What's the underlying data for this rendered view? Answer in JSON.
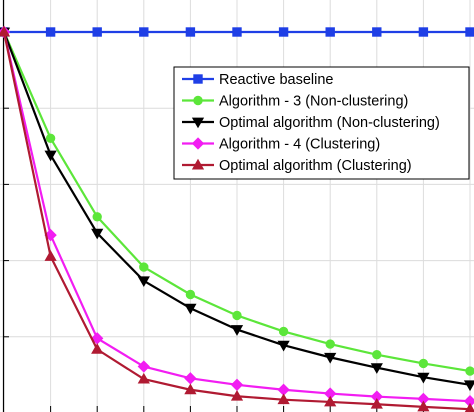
{
  "chart_data": {
    "type": "line",
    "x": [
      0,
      1,
      2,
      3,
      4,
      5,
      6,
      7,
      8,
      9,
      10
    ],
    "ylim": [
      0,
      1.1
    ],
    "xlim": [
      0,
      10
    ],
    "grid": true,
    "legend_position": "upper-right",
    "series": [
      {
        "name": "Reactive baseline",
        "color": "#1f3fe6",
        "marker": "square",
        "values": [
          1.0,
          1.0,
          1.0,
          1.0,
          1.0,
          1.0,
          1.0,
          1.0,
          1.0,
          1.0,
          1.0
        ]
      },
      {
        "name": "Algorithm - 3 (Non-clustering)",
        "color": "#5ce63a",
        "marker": "circle",
        "values": [
          1.0,
          0.721,
          0.515,
          0.383,
          0.311,
          0.256,
          0.214,
          0.181,
          0.153,
          0.13,
          0.11
        ]
      },
      {
        "name": "Optimal algorithm (Non-clustering)",
        "color": "#000000",
        "marker": "triangle-down",
        "values": [
          1.0,
          0.677,
          0.472,
          0.347,
          0.275,
          0.219,
          0.178,
          0.146,
          0.119,
          0.094,
          0.074
        ]
      },
      {
        "name": "Algorithm - 4 (Clustering)",
        "color": "#f21df2",
        "marker": "diamond",
        "values": [
          1.0,
          0.467,
          0.196,
          0.122,
          0.091,
          0.074,
          0.061,
          0.051,
          0.043,
          0.037,
          0.031
        ]
      },
      {
        "name": "Optimal algorithm (Clustering)",
        "color": "#b01a32",
        "marker": "triangle-up",
        "values": [
          1.0,
          0.411,
          0.167,
          0.089,
          0.061,
          0.044,
          0.035,
          0.029,
          0.023,
          0.016,
          0.01
        ]
      }
    ]
  }
}
